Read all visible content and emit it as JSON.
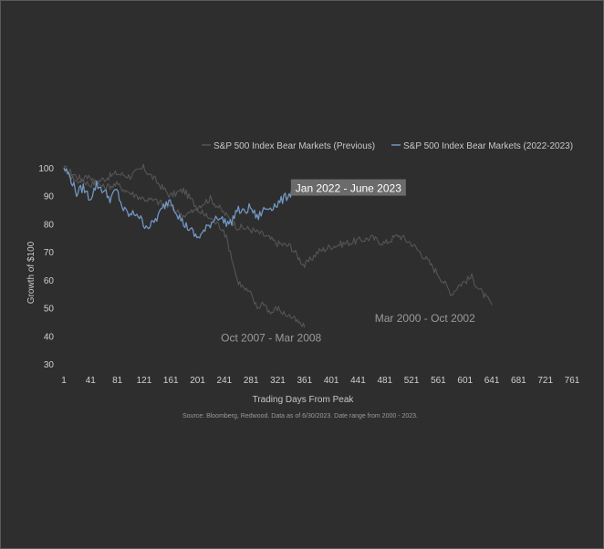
{
  "colors": {
    "background": "#2e2e2e",
    "previous": "#555555",
    "current": "#7196c2",
    "highlight_box": "#6b6b6b"
  },
  "chart_data": {
    "type": "line",
    "title": "",
    "xlabel": "Trading Days From Peak",
    "ylabel": "Growth of $100",
    "xlim": [
      1,
      761
    ],
    "ylim": [
      30,
      100
    ],
    "x_ticks": [
      1,
      41,
      81,
      121,
      161,
      201,
      241,
      281,
      321,
      361,
      401,
      441,
      481,
      521,
      561,
      601,
      641,
      681,
      721,
      761
    ],
    "y_ticks": [
      30,
      40,
      50,
      60,
      70,
      80,
      90,
      100
    ],
    "grid": false,
    "legend_position": "top-right",
    "legend": [
      "S&P 500 Index Bear Markets (Previous)",
      "S&P 500 Index Bear Markets (2022-2023)"
    ],
    "series": [
      {
        "name": "S&P 500 Index Bear Markets (Previous)",
        "label": "Mar 2000 - Oct 2002",
        "color": "#555555",
        "points": [
          [
            1,
            100
          ],
          [
            20,
            97
          ],
          [
            40,
            94
          ],
          [
            60,
            96
          ],
          [
            80,
            98
          ],
          [
            100,
            97
          ],
          [
            120,
            100
          ],
          [
            140,
            95
          ],
          [
            160,
            90
          ],
          [
            180,
            92
          ],
          [
            200,
            86
          ],
          [
            220,
            89
          ],
          [
            240,
            84
          ],
          [
            260,
            79
          ],
          [
            280,
            78
          ],
          [
            300,
            76
          ],
          [
            320,
            73
          ],
          [
            340,
            72
          ],
          [
            361,
            65
          ],
          [
            381,
            70
          ],
          [
            401,
            72
          ],
          [
            421,
            73
          ],
          [
            441,
            74
          ],
          [
            461,
            75
          ],
          [
            481,
            73
          ],
          [
            501,
            76
          ],
          [
            521,
            73
          ],
          [
            541,
            68
          ],
          [
            561,
            62
          ],
          [
            581,
            55
          ],
          [
            591,
            58
          ],
          [
            611,
            61
          ],
          [
            621,
            57
          ],
          [
            641,
            51
          ]
        ]
      },
      {
        "name": "S&P 500 Index Bear Markets (Previous)",
        "label": "Oct 2007 - Mar 2008",
        "color": "#555555",
        "points": [
          [
            1,
            100
          ],
          [
            20,
            95
          ],
          [
            40,
            97
          ],
          [
            60,
            93
          ],
          [
            80,
            94
          ],
          [
            100,
            91
          ],
          [
            120,
            89
          ],
          [
            140,
            88
          ],
          [
            160,
            86
          ],
          [
            180,
            83
          ],
          [
            200,
            85
          ],
          [
            220,
            82
          ],
          [
            240,
            78
          ],
          [
            250,
            70
          ],
          [
            260,
            60
          ],
          [
            270,
            57
          ],
          [
            280,
            55
          ],
          [
            290,
            50
          ],
          [
            300,
            52
          ],
          [
            310,
            48
          ],
          [
            320,
            50
          ],
          [
            330,
            48
          ],
          [
            340,
            47
          ],
          [
            350,
            45
          ],
          [
            361,
            43
          ]
        ]
      },
      {
        "name": "S&P 500 Index Bear Markets (2022-2023)",
        "label": "Jan 2022 - June 2023",
        "color": "#7196c2",
        "points": [
          [
            1,
            100
          ],
          [
            10,
            97
          ],
          [
            20,
            91
          ],
          [
            30,
            93
          ],
          [
            40,
            89
          ],
          [
            50,
            94
          ],
          [
            60,
            92
          ],
          [
            70,
            89
          ],
          [
            80,
            92
          ],
          [
            90,
            85
          ],
          [
            100,
            83
          ],
          [
            110,
            84
          ],
          [
            120,
            80
          ],
          [
            130,
            79
          ],
          [
            140,
            82
          ],
          [
            150,
            86
          ],
          [
            160,
            89
          ],
          [
            170,
            84
          ],
          [
            180,
            80
          ],
          [
            190,
            78
          ],
          [
            200,
            75
          ],
          [
            210,
            77
          ],
          [
            220,
            80
          ],
          [
            230,
            83
          ],
          [
            240,
            81
          ],
          [
            250,
            80
          ],
          [
            260,
            85
          ],
          [
            270,
            84
          ],
          [
            280,
            86
          ],
          [
            290,
            82
          ],
          [
            300,
            85
          ],
          [
            310,
            86
          ],
          [
            320,
            87
          ],
          [
            330,
            89
          ],
          [
            340,
            91
          ],
          [
            345,
            93
          ]
        ]
      }
    ],
    "annotations": [
      {
        "text": "Jan 2022 - June 2023",
        "x": 361,
        "y": 92,
        "boxed": true
      },
      {
        "text": "Mar 2000 - Oct 2002",
        "x": 541,
        "y": 45,
        "boxed": false
      },
      {
        "text": "Oct 2007 - Mar 2008",
        "x": 311,
        "y": 38,
        "boxed": false
      }
    ],
    "source": "Source: Bloomberg, Redwood. Data as of 6/30/2023. Date range from 2000 - 2023."
  }
}
